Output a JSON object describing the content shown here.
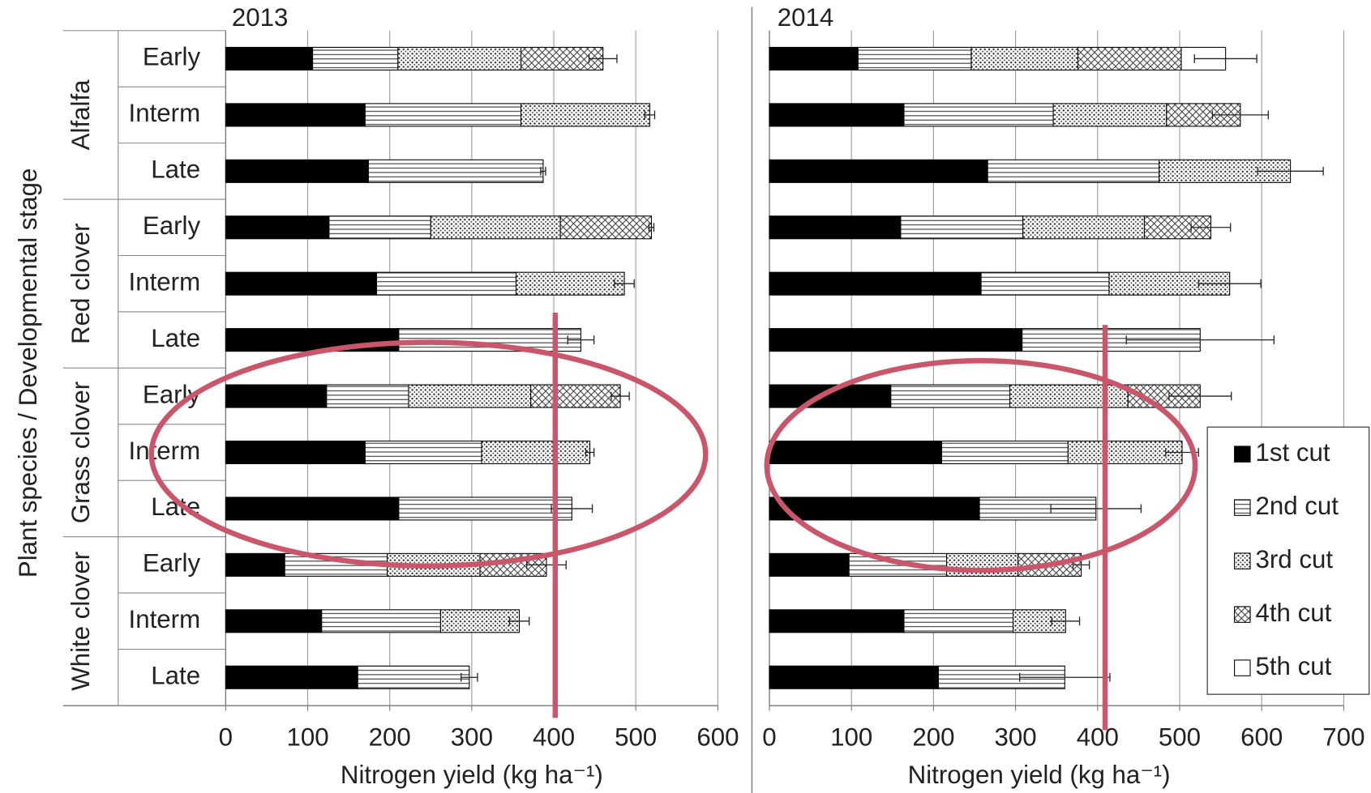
{
  "chart_data": [
    {
      "type": "bar",
      "orientation": "horizontal",
      "stacked": true,
      "title": "2013",
      "y_label": "Plant species / Developmental stage",
      "x_label": "Nitrogen yield (kg ha⁻¹)",
      "groups": [
        "Alfalfa",
        "Red clover",
        "Grass clover",
        "White clover"
      ],
      "categories": [
        "Early",
        "Interm",
        "Late",
        "Early",
        "Interm",
        "Late",
        "Early",
        "Interm",
        "Late",
        "Early",
        "Interm",
        "Late"
      ],
      "series": [
        {
          "color": "#000000",
          "pattern": "solid",
          "values": [
            106,
            170,
            174,
            126,
            184,
            211,
            123,
            170,
            211,
            72,
            117,
            161
          ]
        },
        {
          "color": "#000000",
          "pattern": "hlines",
          "values": [
            104,
            190,
            213,
            124,
            170,
            222,
            100,
            142,
            211,
            125,
            145,
            136
          ]
        },
        {
          "color": "#000000",
          "pattern": "dots",
          "values": [
            150,
            157,
            null,
            158,
            132,
            null,
            149,
            132,
            null,
            113,
            96,
            null
          ]
        },
        {
          "color": "#000000",
          "pattern": "crosshatch",
          "values": [
            100,
            null,
            null,
            111,
            null,
            null,
            109,
            null,
            null,
            81,
            null,
            null
          ]
        }
      ],
      "errors": [
        17,
        6,
        3,
        3,
        12,
        16,
        11,
        5,
        25,
        24,
        12,
        10
      ],
      "xlim": [
        0,
        600
      ],
      "xticks": [
        0,
        100,
        200,
        300,
        400,
        500,
        600
      ],
      "grid": true
    },
    {
      "type": "bar",
      "orientation": "horizontal",
      "stacked": true,
      "title": "2014",
      "x_label": "Nitrogen yield (kg ha⁻¹)",
      "series": [
        {
          "name": "1st cut",
          "color": "#000000",
          "pattern": "solid",
          "values": [
            108,
            164,
            266,
            160,
            258,
            308,
            148,
            210,
            256,
            97,
            164,
            206
          ]
        },
        {
          "name": "2nd cut",
          "color": "#000000",
          "pattern": "hlines",
          "values": [
            138,
            182,
            209,
            149,
            156,
            217,
            145,
            154,
            142,
            119,
            133,
            154
          ]
        },
        {
          "name": "3rd cut",
          "color": "#000000",
          "pattern": "dots",
          "values": [
            130,
            138,
            160,
            148,
            147,
            null,
            144,
            139,
            null,
            87,
            64,
            null
          ]
        },
        {
          "name": "4th cut",
          "color": "#000000",
          "pattern": "crosshatch",
          "values": [
            126,
            90,
            null,
            81,
            null,
            null,
            88,
            null,
            null,
            77,
            null,
            null
          ]
        },
        {
          "name": "5th cut",
          "color": "#000000",
          "pattern": "none",
          "values": [
            54,
            null,
            null,
            null,
            null,
            null,
            null,
            null,
            null,
            null,
            null,
            null
          ]
        }
      ],
      "errors": [
        38,
        34,
        40,
        24,
        38,
        90,
        38,
        20,
        55,
        10,
        17,
        55
      ],
      "xlim": [
        0,
        700
      ],
      "xticks": [
        0,
        100,
        200,
        300,
        400,
        500,
        600,
        700
      ],
      "grid": true,
      "legend": "lower right"
    }
  ]
}
